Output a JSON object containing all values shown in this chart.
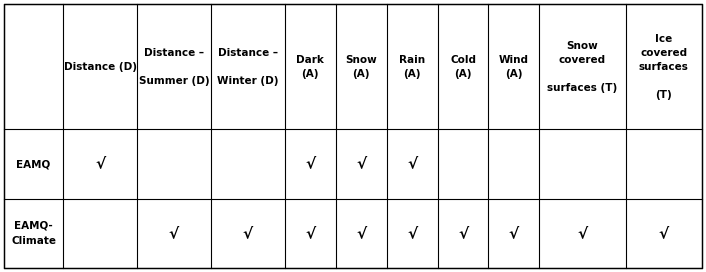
{
  "col_headers": [
    "",
    "Distance (D)",
    "Distance –\n\nSummer (D)",
    "Distance –\n\nWinter (D)",
    "Dark\n(A)",
    "Snow\n(A)",
    "Rain\n(A)",
    "Cold\n(A)",
    "Wind\n(A)",
    "Snow\ncovered\n\nsurfaces (T)",
    "Ice\ncovered\nsurfaces\n\n(T)"
  ],
  "rows": [
    {
      "label": "EAMQ",
      "label2": "",
      "checks": [
        true,
        false,
        false,
        true,
        true,
        true,
        false,
        false,
        false,
        false
      ]
    },
    {
      "label": "EAMQ-",
      "label2": "Climate",
      "checks": [
        false,
        true,
        true,
        true,
        true,
        true,
        true,
        true,
        true,
        true
      ]
    }
  ],
  "background_color": "#ffffff",
  "border_color": "#000000",
  "text_color": "#000000",
  "check_symbol": "√",
  "header_fontsize": 7.5,
  "label_fontsize": 7.5,
  "check_fontsize": 11
}
